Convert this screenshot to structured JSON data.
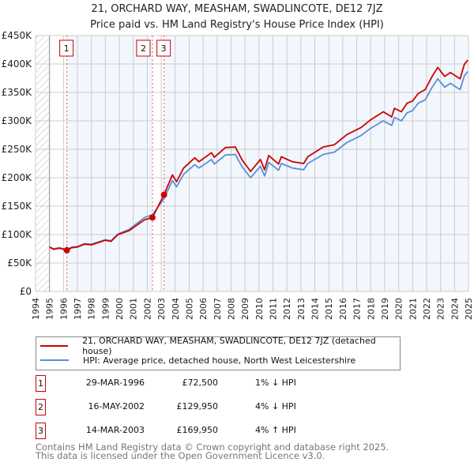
{
  "chart_data": {
    "type": "line",
    "title": "21, ORCHARD WAY, MEASHAM, SWADLINCOTE, DE12 7JZ",
    "subtitle": "Price paid vs. HM Land Registry's House Price Index (HPI)",
    "xlim": [
      1994,
      2025
    ],
    "ylim": [
      0,
      450000
    ],
    "x_ticks": [
      "1994",
      "1995",
      "1996",
      "1997",
      "1998",
      "1999",
      "2000",
      "2001",
      "2002",
      "2003",
      "2004",
      "2005",
      "2006",
      "2007",
      "2008",
      "2009",
      "2010",
      "2011",
      "2012",
      "2013",
      "2014",
      "2015",
      "2016",
      "2017",
      "2018",
      "2019",
      "2020",
      "2021",
      "2022",
      "2023",
      "2024",
      "2025"
    ],
    "y_ticks": [
      {
        "value": 0,
        "label": "£0"
      },
      {
        "value": 50000,
        "label": "£50K"
      },
      {
        "value": 100000,
        "label": "£100K"
      },
      {
        "value": 150000,
        "label": "£150K"
      },
      {
        "value": 200000,
        "label": "£200K"
      },
      {
        "value": 250000,
        "label": "£250K"
      },
      {
        "value": 300000,
        "label": "£300K"
      },
      {
        "value": 350000,
        "label": "£350K"
      },
      {
        "value": 400000,
        "label": "£400K"
      },
      {
        "value": 450000,
        "label": "£450K"
      }
    ],
    "grid": true,
    "x": [
      1995.0,
      1995.3,
      1995.7,
      1996.24,
      1996.6,
      1997,
      1997.5,
      1998,
      1998.5,
      1999,
      1999.4,
      1999.9,
      2000.7,
      2001.8,
      2002.37,
      2003.2,
      2003.8,
      2004.1,
      2004.6,
      2005.4,
      2005.7,
      2006.6,
      2006.8,
      2007.6,
      2008.3,
      2008.8,
      2009.4,
      2010.1,
      2010.4,
      2010.7,
      2011.4,
      2011.6,
      2012.4,
      2013.2,
      2013.5,
      2014.6,
      2015.4,
      2016.3,
      2017.3,
      2018.0,
      2018.9,
      2019.5,
      2019.7,
      2020.2,
      2020.6,
      2021,
      2021.4,
      2021.9,
      2022.4,
      2022.8,
      2023.3,
      2023.7,
      2024.4,
      2024.7,
      2024.95
    ],
    "series": [
      {
        "name": "21, ORCHARD WAY, MEASHAM, SWADLINCOTE, DE12 7JZ (detached house)",
        "color": "#cc0000",
        "values": [
          78000,
          74000,
          76000,
          72500,
          77000,
          78000,
          83000,
          82000,
          86000,
          90000,
          88000,
          100000,
          107000,
          126000,
          129950,
          169950,
          205000,
          193000,
          217000,
          235000,
          228000,
          244000,
          236000,
          253000,
          254000,
          231000,
          211000,
          232000,
          214000,
          239000,
          224000,
          237000,
          228000,
          225000,
          237000,
          254000,
          258000,
          276000,
          288000,
          302000,
          316000,
          307000,
          322000,
          316000,
          331000,
          335000,
          348000,
          355000,
          378000,
          394000,
          378000,
          385000,
          374000,
          399000,
          407000
        ]
      },
      {
        "name": "HPI: Average price, detached house, North West Leicestershire",
        "color": "#5b8fd4",
        "values": [
          78000,
          75000,
          77000,
          73500,
          78000,
          79000,
          84000,
          83000,
          87000,
          91000,
          89000,
          101000,
          109000,
          130000,
          135000,
          163000,
          195000,
          184000,
          206000,
          223000,
          217000,
          232000,
          224000,
          240000,
          241000,
          219000,
          200000,
          220000,
          203000,
          227000,
          213000,
          225000,
          217000,
          214000,
          225000,
          241000,
          245000,
          262000,
          274000,
          287000,
          300000,
          292000,
          306000,
          300000,
          314000,
          318000,
          331000,
          337000,
          359000,
          374000,
          359000,
          366000,
          355000,
          379000,
          387000
        ]
      }
    ],
    "sales": [
      {
        "label": "1",
        "x": 1996.24,
        "value": 72500,
        "date": "29-MAR-1996",
        "price": "£72,500",
        "hpi": "1% ↓ HPI"
      },
      {
        "label": "2",
        "x": 2002.37,
        "value": 129950,
        "date": "16-MAY-2002",
        "price": "£129,950",
        "hpi": "4% ↓ HPI"
      },
      {
        "label": "3",
        "x": 2003.2,
        "value": 169950,
        "date": "14-MAR-2003",
        "price": "£169,950",
        "hpi": "4% ↑ HPI"
      }
    ],
    "legend_placement": "below"
  },
  "footer": {
    "line1": "Contains HM Land Registry data © Crown copyright and database right 2025.",
    "line2": "This data is licensed under the Open Government Licence v3.0."
  }
}
